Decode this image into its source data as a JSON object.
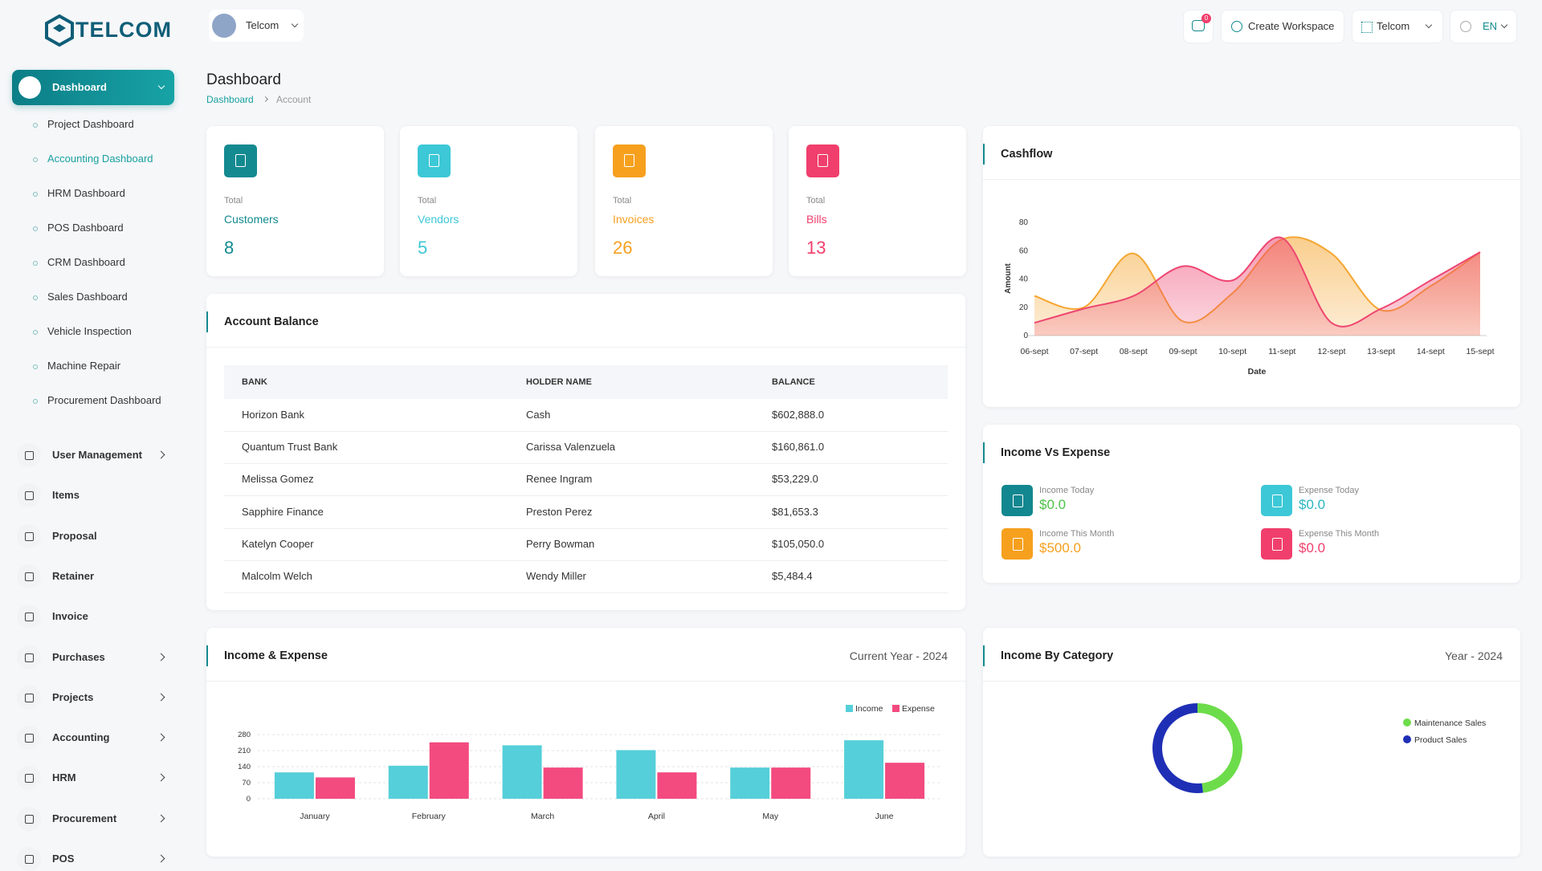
{
  "header": {
    "logo": "TELCOM",
    "workspace": "Telcom",
    "notifications": "0",
    "create_workspace": "Create Workspace",
    "company": "Telcom",
    "language": "EN"
  },
  "sidebar": {
    "dashboard": "Dashboard",
    "dashboard_links": [
      "Project Dashboard",
      "Accounting Dashboard",
      "HRM Dashboard",
      "POS Dashboard",
      "CRM Dashboard",
      "Sales Dashboard",
      "Vehicle Inspection",
      "Machine Repair",
      "Procurement Dashboard"
    ],
    "menu": [
      {
        "label": "User Management",
        "submenu": true
      },
      {
        "label": "Items",
        "submenu": false
      },
      {
        "label": "Proposal",
        "submenu": false
      },
      {
        "label": "Retainer",
        "submenu": false
      },
      {
        "label": "Invoice",
        "submenu": false
      },
      {
        "label": "Purchases",
        "submenu": true
      },
      {
        "label": "Projects",
        "submenu": true
      },
      {
        "label": "Accounting",
        "submenu": true
      },
      {
        "label": "HRM",
        "submenu": true
      },
      {
        "label": "Procurement",
        "submenu": true
      },
      {
        "label": "POS",
        "submenu": true
      }
    ]
  },
  "page": {
    "title": "Dashboard",
    "breadcrumb": [
      "Dashboard",
      "Account"
    ]
  },
  "stats": [
    {
      "caption": "Total",
      "label": "Customers",
      "value": 8,
      "color": "#138a90"
    },
    {
      "caption": "Total",
      "label": "Vendors",
      "value": 5,
      "color": "#3cc8d6"
    },
    {
      "caption": "Total",
      "label": "Invoices",
      "value": 26,
      "color": "#f6a01e"
    },
    {
      "caption": "Total",
      "label": "Bills",
      "value": 13,
      "color": "#f03f6c"
    }
  ],
  "account_balance": {
    "title": "Account Balance",
    "columns": [
      "BANK",
      "HOLDER NAME",
      "BALANCE"
    ],
    "rows": [
      [
        "Horizon Bank",
        "Cash",
        "$602,888.0"
      ],
      [
        "Quantum Trust Bank",
        "Carissa Valenzuela",
        "$160,861.0"
      ],
      [
        "Melissa Gomez",
        "Renee Ingram",
        "$53,229.0"
      ],
      [
        "Sapphire Finance",
        "Preston Perez",
        "$81,653.3"
      ],
      [
        "Katelyn Cooper",
        "Perry Bowman",
        "$105,050.0"
      ],
      [
        "Malcolm Welch",
        "Wendy Miller",
        "$5,484.4"
      ]
    ]
  },
  "income_vs_expense": {
    "title": "Income Vs Expense",
    "items": [
      {
        "label": "Income Today",
        "value": "$0.0",
        "color": "#128790",
        "value_color": "#4cc24a"
      },
      {
        "label": "Expense Today",
        "value": "$0.0",
        "color": "#3cc8d6",
        "value_color": "#2ab4c4"
      },
      {
        "label": "Income This Month",
        "value": "$500.0",
        "color": "#f6a01e",
        "value_color": "#f6a01e"
      },
      {
        "label": "Expense This Month",
        "value": "$0.0",
        "color": "#f03f6c",
        "value_color": "#f03f6c"
      }
    ]
  },
  "chart_data": [
    {
      "type": "area",
      "title": "Cashflow",
      "x_label": "Date",
      "y_label": "Amount",
      "categories": [
        "06-sept",
        "07-sept",
        "08-sept",
        "09-sept",
        "10-sept",
        "11-sept",
        "12-sept",
        "13-sept",
        "14-sept",
        "15-sept"
      ],
      "series": [
        {
          "color": "#f5a631",
          "values": [
            28,
            20,
            58,
            10,
            30,
            68,
            58,
            18,
            35,
            59
          ]
        },
        {
          "color": "#ee4671",
          "values": [
            9,
            19,
            28,
            49,
            39,
            69,
            9,
            19,
            39,
            59
          ]
        }
      ],
      "ylim": [
        0,
        80
      ],
      "yticks": [
        0,
        20,
        40,
        60,
        80
      ]
    },
    {
      "type": "bar",
      "title": "Income & Expense",
      "subtitle": "Current Year - 2024",
      "categories": [
        "January",
        "February",
        "March",
        "April",
        "May",
        "June"
      ],
      "series": [
        {
          "name": "Income",
          "color": "#55cfd9",
          "values": [
            115,
            144,
            233,
            212,
            136,
            255
          ]
        },
        {
          "name": "Expense",
          "color": "#f34a7f",
          "values": [
            93,
            246,
            136,
            115,
            136,
            157
          ]
        }
      ],
      "ylim": [
        0,
        280
      ],
      "yticks": [
        0,
        70,
        140,
        210,
        280
      ],
      "grid": true
    },
    {
      "type": "donut",
      "title": "Income By Category",
      "subtitle": "Year - 2024",
      "categories": [
        "Maintenance Sales",
        "Product Sales"
      ],
      "values": [
        48,
        52
      ],
      "colors": [
        "#6ddc4a",
        "#1f2fb5"
      ]
    }
  ]
}
